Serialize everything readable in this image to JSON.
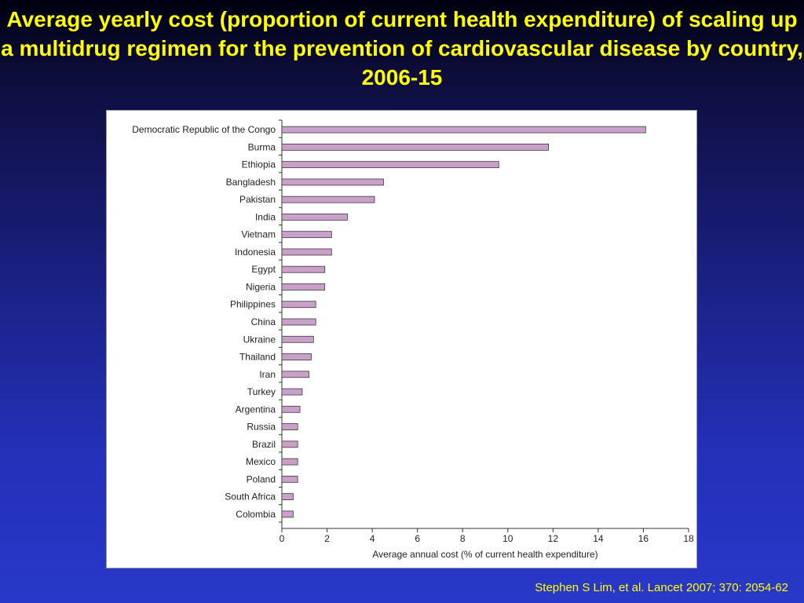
{
  "slide": {
    "title": "Average yearly cost (proportion of current health expenditure) of scaling up a multidrug regimen for the prevention of cardiovascular disease by country, 2006-15",
    "citation": "Stephen S Lim, et al. Lancet 2007; 370: 2054-62"
  },
  "colors": {
    "title_text": "#ffff00",
    "bar_fill": "#c9a0c9",
    "bar_stroke": "#3a3a3a"
  },
  "chart_data": {
    "type": "bar",
    "orientation": "horizontal",
    "title": "",
    "xlabel": "Average annual cost (% of current health expenditure)",
    "ylabel": "",
    "xlim": [
      0,
      18
    ],
    "xticks": [
      0,
      2,
      4,
      6,
      8,
      10,
      12,
      14,
      16,
      18
    ],
    "grid": false,
    "categories": [
      "Democratic Republic of the Congo",
      "Burma",
      "Ethiopia",
      "Bangladesh",
      "Pakistan",
      "India",
      "Vietnam",
      "Indonesia",
      "Egypt",
      "Nigeria",
      "Philippines",
      "China",
      "Ukraine",
      "Thailand",
      "Iran",
      "Turkey",
      "Argentina",
      "Russia",
      "Brazil",
      "Mexico",
      "Poland",
      "South Africa",
      "Colombia"
    ],
    "values": [
      16.1,
      11.8,
      9.6,
      4.5,
      4.1,
      2.9,
      2.2,
      2.2,
      1.9,
      1.9,
      1.5,
      1.5,
      1.4,
      1.3,
      1.2,
      0.9,
      0.8,
      0.7,
      0.7,
      0.7,
      0.7,
      0.5,
      0.5
    ]
  }
}
